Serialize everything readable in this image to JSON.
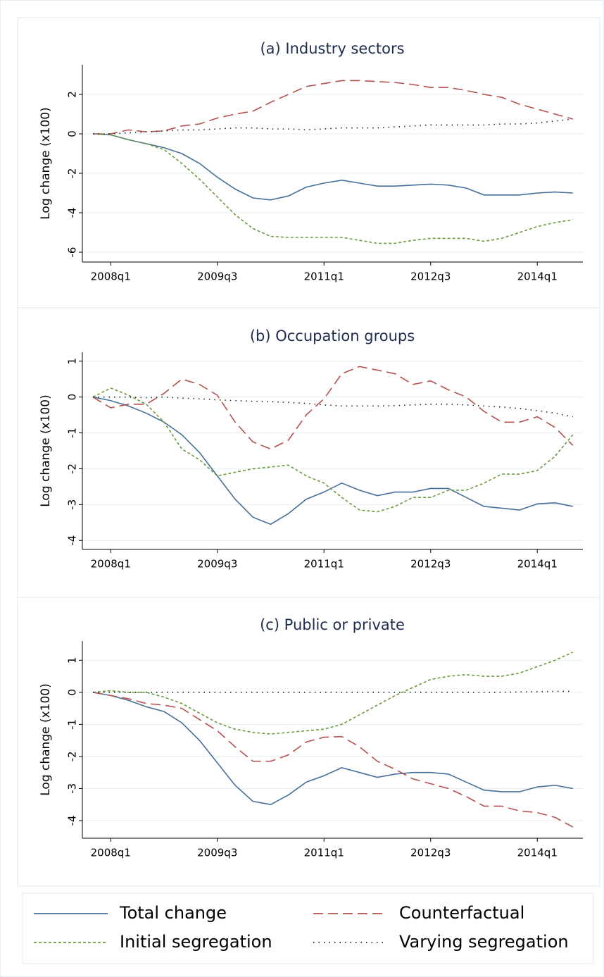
{
  "chart_data": [
    {
      "type": "line",
      "title": "(a) Industry sectors",
      "ylabel": "Log change (x100)",
      "categories": [
        null,
        "2008q1",
        null,
        null,
        null,
        null,
        null,
        "2009q3",
        null,
        null,
        null,
        null,
        null,
        "2011q1",
        null,
        null,
        null,
        null,
        null,
        "2012q3",
        null,
        null,
        null,
        null,
        null,
        "2014q1",
        null,
        null
      ],
      "ylim": [
        -6.5,
        3.5
      ],
      "yticks": [
        -6,
        -4,
        -2,
        0,
        2
      ],
      "grid": true,
      "series": [
        {
          "name": "Total change",
          "color": "#46709a",
          "linestyle": "solid",
          "values": [
            0,
            -0.05,
            -0.3,
            -0.5,
            -0.7,
            -1.0,
            -1.5,
            -2.2,
            -2.8,
            -3.25,
            -3.35,
            -3.15,
            -2.7,
            -2.5,
            -2.35,
            -2.5,
            -2.65,
            -2.65,
            -2.6,
            -2.55,
            -2.6,
            -2.75,
            -3.1,
            -3.1,
            -3.1,
            -3.0,
            -2.95,
            -3.0
          ]
        },
        {
          "name": "Counterfactual",
          "color": "#b5514f",
          "linestyle": "long",
          "values": [
            0,
            0,
            0.2,
            0.1,
            0.15,
            0.4,
            0.5,
            0.8,
            1.0,
            1.15,
            1.6,
            2.0,
            2.4,
            2.55,
            2.7,
            2.7,
            2.65,
            2.6,
            2.5,
            2.35,
            2.35,
            2.2,
            2.0,
            1.85,
            1.5,
            1.25,
            1.0,
            0.75
          ]
        },
        {
          "name": "Initial segregation",
          "color": "#6a9a3e",
          "linestyle": "short",
          "values": [
            0,
            -0.05,
            -0.3,
            -0.5,
            -0.8,
            -1.5,
            -2.3,
            -3.2,
            -4.1,
            -4.8,
            -5.2,
            -5.25,
            -5.25,
            -5.25,
            -5.25,
            -5.4,
            -5.55,
            -5.55,
            -5.4,
            -5.3,
            -5.3,
            -5.3,
            -5.45,
            -5.3,
            -5.0,
            -4.7,
            -4.5,
            -4.35
          ]
        },
        {
          "name": "Varying segregation",
          "color": "#222222",
          "linestyle": "dot",
          "values": [
            0,
            0,
            0.05,
            0.1,
            0.15,
            0.2,
            0.2,
            0.25,
            0.3,
            0.3,
            0.25,
            0.25,
            0.2,
            0.25,
            0.3,
            0.3,
            0.3,
            0.35,
            0.4,
            0.45,
            0.45,
            0.45,
            0.45,
            0.5,
            0.5,
            0.55,
            0.65,
            0.75
          ]
        }
      ]
    },
    {
      "type": "line",
      "title": "(b) Occupation groups",
      "ylabel": "Log change (x100)",
      "categories": [
        null,
        "2008q1",
        null,
        null,
        null,
        null,
        null,
        "2009q3",
        null,
        null,
        null,
        null,
        null,
        "2011q1",
        null,
        null,
        null,
        null,
        null,
        "2012q3",
        null,
        null,
        null,
        null,
        null,
        "2014q1",
        null,
        null
      ],
      "ylim": [
        -4.25,
        1.25
      ],
      "yticks": [
        -4,
        -3,
        -2,
        -1,
        0,
        1
      ],
      "grid": true,
      "series": [
        {
          "color": "#46709a",
          "linestyle": "solid",
          "values": [
            0,
            -0.1,
            -0.25,
            -0.45,
            -0.7,
            -1.05,
            -1.55,
            -2.2,
            -2.85,
            -3.35,
            -3.55,
            -3.25,
            -2.85,
            -2.65,
            -2.4,
            -2.6,
            -2.75,
            -2.65,
            -2.65,
            -2.55,
            -2.55,
            -2.8,
            -3.05,
            -3.1,
            -3.15,
            -2.98,
            -2.95,
            -3.05
          ]
        },
        {
          "color": "#b5514f",
          "linestyle": "long",
          "values": [
            0,
            -0.3,
            -0.2,
            -0.2,
            0.1,
            0.5,
            0.35,
            0.05,
            -0.7,
            -1.25,
            -1.45,
            -1.2,
            -0.5,
            -0.05,
            0.65,
            0.85,
            0.75,
            0.65,
            0.35,
            0.45,
            0.2,
            0,
            -0.4,
            -0.7,
            -0.7,
            -0.55,
            -0.85,
            -1.35
          ]
        },
        {
          "color": "#6a9a3e",
          "linestyle": "short",
          "values": [
            0,
            0.25,
            0.05,
            -0.2,
            -0.7,
            -1.45,
            -1.75,
            -2.2,
            -2.1,
            -2.0,
            -1.95,
            -1.9,
            -2.2,
            -2.4,
            -2.8,
            -3.15,
            -3.2,
            -3.05,
            -2.8,
            -2.8,
            -2.6,
            -2.6,
            -2.4,
            -2.15,
            -2.15,
            -2.05,
            -1.65,
            -1.05
          ]
        },
        {
          "color": "#222222",
          "linestyle": "dot",
          "values": [
            0,
            0,
            0,
            -0.02,
            0,
            -0.03,
            -0.05,
            -0.08,
            -0.1,
            -0.12,
            -0.13,
            -0.15,
            -0.18,
            -0.22,
            -0.25,
            -0.25,
            -0.25,
            -0.24,
            -0.22,
            -0.2,
            -0.2,
            -0.22,
            -0.25,
            -0.28,
            -0.32,
            -0.38,
            -0.45,
            -0.55
          ]
        }
      ]
    },
    {
      "type": "line",
      "title": "(c) Public or private",
      "ylabel": "Log change (x100)",
      "categories": [
        null,
        "2008q1",
        null,
        null,
        null,
        null,
        null,
        "2009q3",
        null,
        null,
        null,
        null,
        null,
        "2011q1",
        null,
        null,
        null,
        null,
        null,
        "2012q3",
        null,
        null,
        null,
        null,
        null,
        "2014q1",
        null,
        null
      ],
      "ylim": [
        -4.55,
        1.6
      ],
      "yticks": [
        -4,
        -3,
        -2,
        -1,
        0,
        1
      ],
      "grid": true,
      "series": [
        {
          "color": "#46709a",
          "linestyle": "solid",
          "values": [
            0,
            -0.1,
            -0.25,
            -0.45,
            -0.6,
            -0.95,
            -1.5,
            -2.2,
            -2.9,
            -3.4,
            -3.5,
            -3.2,
            -2.8,
            -2.6,
            -2.35,
            -2.5,
            -2.65,
            -2.55,
            -2.5,
            -2.5,
            -2.55,
            -2.8,
            -3.05,
            -3.1,
            -3.1,
            -2.95,
            -2.9,
            -3.0
          ]
        },
        {
          "color": "#b5514f",
          "linestyle": "long",
          "values": [
            0,
            -0.1,
            -0.2,
            -0.35,
            -0.4,
            -0.5,
            -0.85,
            -1.2,
            -1.7,
            -2.15,
            -2.15,
            -1.95,
            -1.55,
            -1.4,
            -1.38,
            -1.7,
            -2.15,
            -2.4,
            -2.7,
            -2.85,
            -3.0,
            -3.25,
            -3.55,
            -3.55,
            -3.7,
            -3.75,
            -3.9,
            -4.2
          ]
        },
        {
          "color": "#6a9a3e",
          "linestyle": "short",
          "values": [
            0,
            0.05,
            0,
            0,
            -0.15,
            -0.35,
            -0.65,
            -0.95,
            -1.15,
            -1.25,
            -1.3,
            -1.25,
            -1.2,
            -1.15,
            -1.0,
            -0.7,
            -0.4,
            -0.1,
            0.15,
            0.4,
            0.5,
            0.55,
            0.5,
            0.5,
            0.6,
            0.8,
            1.0,
            1.25
          ]
        },
        {
          "color": "#222222",
          "linestyle": "dot",
          "values": [
            0,
            0,
            0,
            0,
            0,
            0,
            0,
            0,
            0,
            0,
            0,
            0,
            0,
            0,
            0,
            0,
            0,
            0,
            0,
            0,
            0,
            0,
            0,
            0,
            0.01,
            0.02,
            0.03,
            0.03
          ]
        }
      ]
    }
  ]
}
